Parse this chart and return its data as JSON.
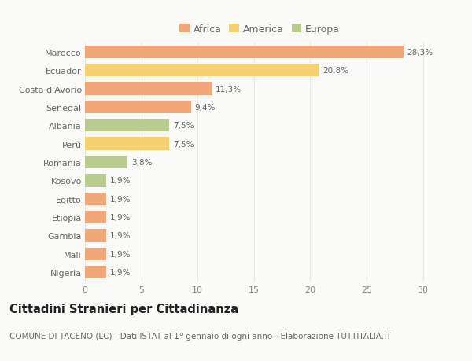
{
  "categories": [
    "Marocco",
    "Ecuador",
    "Costa d'Avorio",
    "Senegal",
    "Albania",
    "Perù",
    "Romania",
    "Kosovo",
    "Egitto",
    "Etiopia",
    "Gambia",
    "Mali",
    "Nigeria"
  ],
  "values": [
    28.3,
    20.8,
    11.3,
    9.4,
    7.5,
    7.5,
    3.8,
    1.9,
    1.9,
    1.9,
    1.9,
    1.9,
    1.9
  ],
  "labels": [
    "28,3%",
    "20,8%",
    "11,3%",
    "9,4%",
    "7,5%",
    "7,5%",
    "3,8%",
    "1,9%",
    "1,9%",
    "1,9%",
    "1,9%",
    "1,9%",
    "1,9%"
  ],
  "colors": [
    "#F0A878",
    "#F5D070",
    "#F0A878",
    "#F0A878",
    "#B8CC90",
    "#F5D070",
    "#B8CC90",
    "#B8CC90",
    "#F0A878",
    "#F0A878",
    "#F0A878",
    "#F0A878",
    "#F0A878"
  ],
  "legend_colors": {
    "Africa": "#F0A878",
    "America": "#F5D070",
    "Europa": "#B8CC90"
  },
  "title": "Cittadini Stranieri per Cittadinanza",
  "subtitle": "COMUNE DI TACENO (LC) - Dati ISTAT al 1° gennaio di ogni anno - Elaborazione TUTTITALIA.IT",
  "xlim": [
    0,
    31
  ],
  "xticks": [
    0,
    5,
    10,
    15,
    20,
    25,
    30
  ],
  "background_color": "#FAFAF8",
  "plot_bg_color": "#FAFAF8",
  "grid_color": "#E8E8DC",
  "bar_height": 0.7,
  "title_fontsize": 10.5,
  "subtitle_fontsize": 7.5,
  "label_fontsize": 7.5,
  "tick_fontsize": 8,
  "legend_fontsize": 9
}
